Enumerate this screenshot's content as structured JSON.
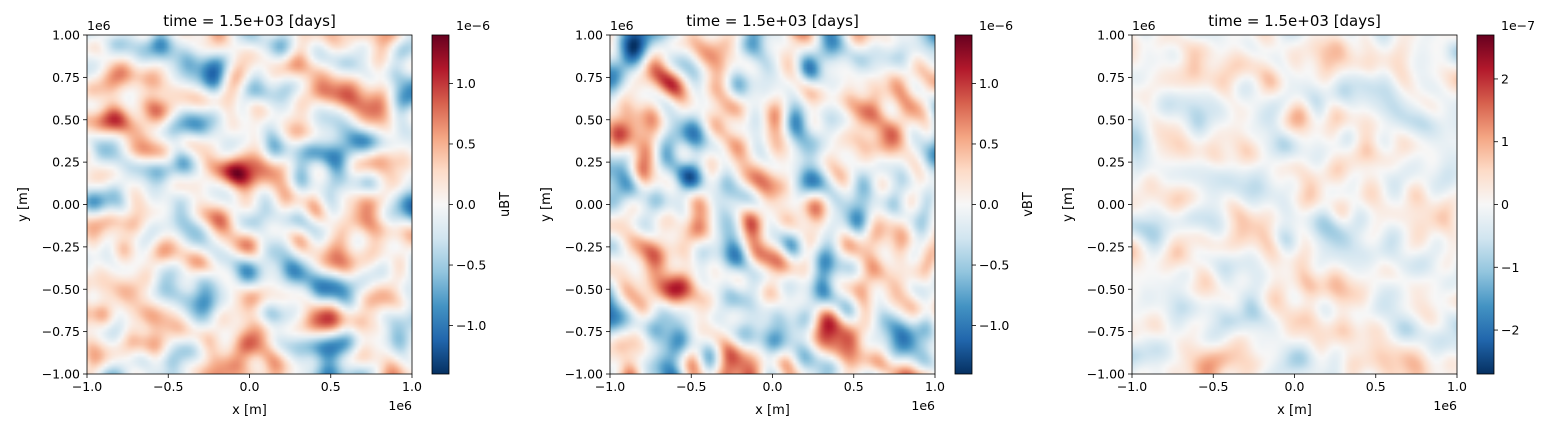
{
  "colormap": {
    "name": "RdBu_r",
    "stops": [
      "#053061",
      "#2166ac",
      "#4393c3",
      "#92c5de",
      "#d1e5f0",
      "#f7f7f7",
      "#fddbc7",
      "#f4a582",
      "#d6604d",
      "#b2182b",
      "#67001f"
    ]
  },
  "chart_data": [
    {
      "type": "heatmap",
      "title": "time = 1.5e+03 [days]",
      "xlabel": "x [m]",
      "ylabel": "y [m]",
      "x_offset_label": "1e6",
      "y_offset_label": "1e6",
      "xlim": [
        -1.0,
        1.0
      ],
      "ylim": [
        -1.0,
        1.0
      ],
      "xticks": [
        -1.0,
        -0.5,
        0.0,
        0.5,
        1.0
      ],
      "xtick_labels": [
        "−1.0",
        "−0.5",
        "0.0",
        "0.5",
        "1.0"
      ],
      "yticks": [
        -1.0,
        -0.75,
        -0.5,
        -0.25,
        0.0,
        0.25,
        0.5,
        0.75,
        1.0
      ],
      "ytick_labels": [
        "−1.00",
        "−0.75",
        "−0.50",
        "−0.25",
        "0.00",
        "0.25",
        "0.50",
        "0.75",
        "1.00"
      ],
      "colorbar": {
        "label": "uBT",
        "offset_label": "1e−6",
        "range": [
          -1.4,
          1.4
        ],
        "ticks": [
          -1.0,
          -0.5,
          0.0,
          0.5,
          1.0
        ],
        "tick_labels": [
          "−1.0",
          "−0.5",
          "0.0",
          "0.5",
          "1.0"
        ]
      },
      "field": {
        "seed": 11,
        "amplitude": 1.0
      }
    },
    {
      "type": "heatmap",
      "title": "time = 1.5e+03 [days]",
      "xlabel": "x [m]",
      "ylabel": "y [m]",
      "x_offset_label": "1e6",
      "y_offset_label": "1e6",
      "xlim": [
        -1.0,
        1.0
      ],
      "ylim": [
        -1.0,
        1.0
      ],
      "xticks": [
        -1.0,
        -0.5,
        0.0,
        0.5,
        1.0
      ],
      "xtick_labels": [
        "−1.0",
        "−0.5",
        "0.0",
        "0.5",
        "1.0"
      ],
      "yticks": [
        -1.0,
        -0.75,
        -0.5,
        -0.25,
        0.0,
        0.25,
        0.5,
        0.75,
        1.0
      ],
      "ytick_labels": [
        "−1.00",
        "−0.75",
        "−0.50",
        "−0.25",
        "0.00",
        "0.25",
        "0.50",
        "0.75",
        "1.00"
      ],
      "colorbar": {
        "label": "vBT",
        "offset_label": "1e−6",
        "range": [
          -1.4,
          1.4
        ],
        "ticks": [
          -1.0,
          -0.5,
          0.0,
          0.5,
          1.0
        ],
        "tick_labels": [
          "−1.0",
          "−0.5",
          "0.0",
          "0.5",
          "1.0"
        ]
      },
      "field": {
        "seed": 23,
        "amplitude": 1.0
      }
    },
    {
      "type": "heatmap",
      "title": "time = 1.5e+03 [days]",
      "xlabel": "x [m]",
      "ylabel": "y [m]",
      "x_offset_label": "1e6",
      "y_offset_label": "1e6",
      "xlim": [
        -1.0,
        1.0
      ],
      "ylim": [
        -1.0,
        1.0
      ],
      "xticks": [
        -1.0,
        -0.5,
        0.0,
        0.5,
        1.0
      ],
      "xtick_labels": [
        "−1.0",
        "−0.5",
        "0.0",
        "0.5",
        "1.0"
      ],
      "yticks": [
        -1.0,
        -0.75,
        -0.5,
        -0.25,
        0.0,
        0.25,
        0.5,
        0.75,
        1.0
      ],
      "ytick_labels": [
        "−1.00",
        "−0.75",
        "−0.50",
        "−0.25",
        "0.00",
        "0.25",
        "0.50",
        "0.75",
        "1.00"
      ],
      "colorbar": {
        "label": "",
        "offset_label": "1e−7",
        "range": [
          -2.7,
          2.7
        ],
        "ticks": [
          -2,
          -1,
          0,
          1,
          2
        ],
        "tick_labels": [
          "−2",
          "−1",
          "0",
          "1",
          "2"
        ]
      },
      "field": {
        "seed": 37,
        "amplitude": 0.45
      }
    }
  ]
}
